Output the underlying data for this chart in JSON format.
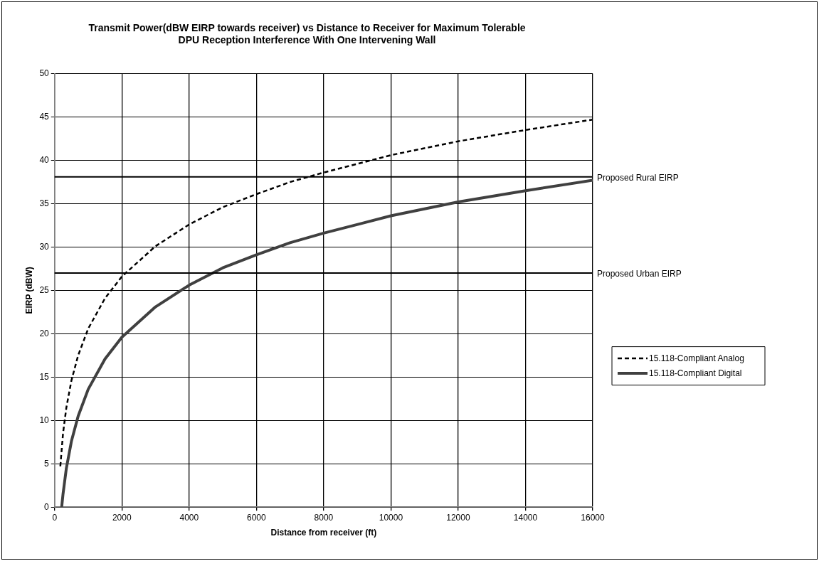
{
  "chart_data": {
    "type": "line",
    "title": "Transmit Power(dBW EIRP towards receiver) vs Distance to Receiver for Maximum Tolerable\nDPU Reception Interference With One Intervening Wall",
    "xlabel": "Distance from receiver (ft)",
    "ylabel": "EIRP (dBW)",
    "xlim": [
      0,
      16000
    ],
    "xticks": [
      0,
      2000,
      4000,
      6000,
      8000,
      10000,
      12000,
      14000,
      16000
    ],
    "ylim": [
      0,
      50
    ],
    "yticks": [
      0,
      5,
      10,
      15,
      20,
      25,
      30,
      35,
      40,
      45,
      50
    ],
    "grid": true,
    "legend": "right",
    "marker": "none",
    "series": [
      {
        "name": "15.118-Compliant Analog",
        "color": "#000000",
        "line_style": "dashed",
        "x": [
          170,
          250,
          350,
          500,
          700,
          1000,
          1500,
          2000,
          3000,
          4000,
          5000,
          6000,
          7000,
          8000,
          10000,
          12000,
          14000,
          16000
        ],
        "values": [
          4.7,
          8.5,
          11.5,
          14.6,
          17.5,
          20.6,
          24.1,
          26.6,
          30.1,
          32.6,
          34.6,
          36.1,
          37.5,
          38.6,
          40.6,
          42.2,
          43.5,
          44.7
        ]
      },
      {
        "name": "15.118-Compliant Digital",
        "color": "#404040",
        "line_style": "solid",
        "x": [
          210,
          250,
          350,
          500,
          700,
          1000,
          1500,
          2000,
          3000,
          4000,
          5000,
          6000,
          7000,
          8000,
          10000,
          12000,
          14000,
          16000
        ],
        "values": [
          0,
          1.5,
          4.5,
          7.6,
          10.5,
          13.6,
          17.1,
          19.6,
          23.1,
          25.6,
          27.6,
          29.1,
          30.5,
          31.6,
          33.6,
          35.2,
          36.5,
          37.7
        ]
      }
    ],
    "ref_lines": [
      {
        "axis": "y",
        "value": 38.1,
        "label": "Proposed Rural EIRP",
        "color": "#000000"
      },
      {
        "axis": "y",
        "value": 27,
        "label": "Proposed Urban EIRP",
        "color": "#000000"
      }
    ]
  }
}
